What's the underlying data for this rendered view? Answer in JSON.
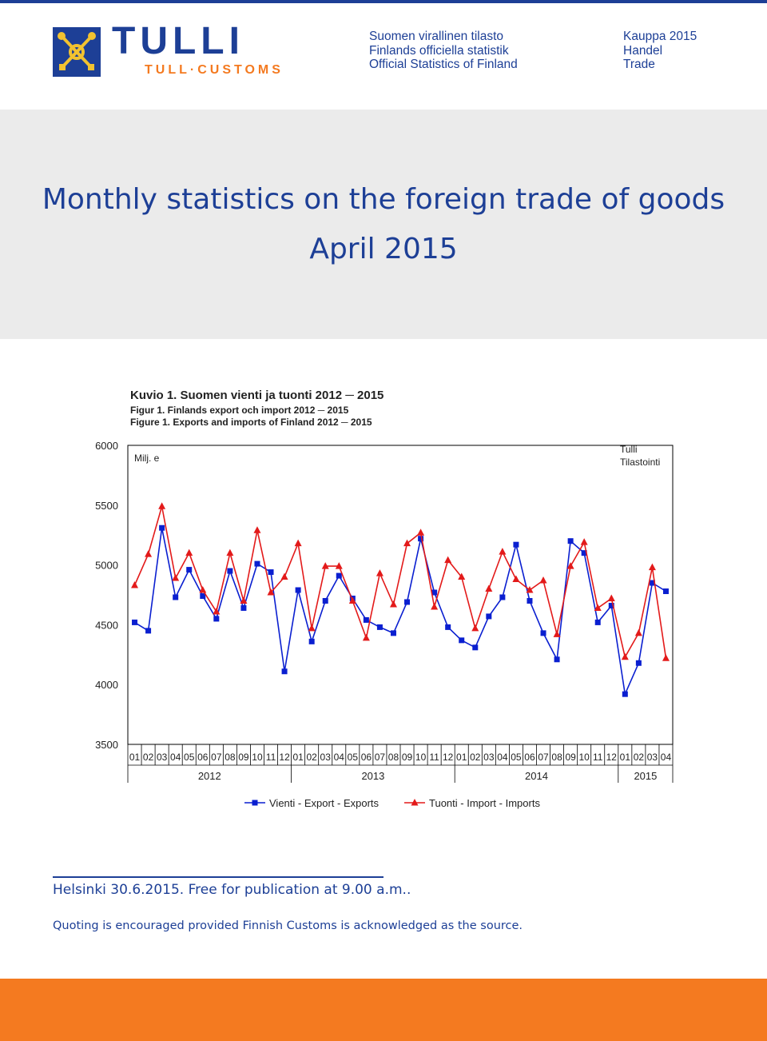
{
  "header": {
    "brand": "TULLI",
    "brand_sub": "TULL·CUSTOMS",
    "official_lines": [
      "Suomen virallinen tilasto",
      "Finlands officiella statistik",
      "Official Statistics of Finland"
    ],
    "series_lines": [
      "Kauppa 2015",
      "Handel",
      "Trade"
    ],
    "logo_icon": "crossed-keys-seal-icon",
    "brand_color": "#1d3f96",
    "accent_color": "#f47a20"
  },
  "title": {
    "line1": "Monthly statistics on the foreign trade of goods",
    "line2": "April 2015"
  },
  "figure_titles": {
    "fi": "Kuvio 1. Suomen vienti ja tuonti 2012 ─ 2015",
    "sv": "Figur 1. Finlands export och import 2012 ─ 2015",
    "en": "Figure 1. Exports and imports of Finland 2012 ─ 2015"
  },
  "chart_data": {
    "type": "line",
    "unit_label": "Milj. e",
    "source_label": [
      "Tulli",
      "Tilastointi"
    ],
    "ylim": [
      3500,
      6000
    ],
    "yticks": [
      3500,
      4000,
      4500,
      5000,
      5500,
      6000
    ],
    "grid": false,
    "legend_position": "bottom",
    "categories": [
      "01",
      "02",
      "03",
      "04",
      "05",
      "06",
      "07",
      "08",
      "09",
      "10",
      "11",
      "12",
      "01",
      "02",
      "03",
      "04",
      "05",
      "06",
      "07",
      "08",
      "09",
      "10",
      "11",
      "12",
      "01",
      "02",
      "03",
      "04",
      "05",
      "06",
      "07",
      "08",
      "09",
      "10",
      "11",
      "12",
      "01",
      "02",
      "03",
      "04"
    ],
    "years": [
      {
        "label": "2012",
        "months": 12
      },
      {
        "label": "2013",
        "months": 12
      },
      {
        "label": "2014",
        "months": 12
      },
      {
        "label": "2015",
        "months": 4
      }
    ],
    "series": [
      {
        "name": "Vienti - Export - Exports",
        "color": "#0a1fd0",
        "marker": "square",
        "values": [
          4520,
          4450,
          5310,
          4730,
          4960,
          4740,
          4550,
          4950,
          4640,
          5010,
          4940,
          4110,
          4790,
          4360,
          4700,
          4910,
          4720,
          4540,
          4480,
          4430,
          4690,
          5220,
          4770,
          4480,
          4370,
          4310,
          4570,
          4730,
          5170,
          4700,
          4430,
          4210,
          5200,
          5100,
          4520,
          4660,
          3920,
          4180,
          4850,
          4780
        ]
      },
      {
        "name": "Tuonti - Import - Imports",
        "color": "#e31a1a",
        "marker": "triangle",
        "values": [
          4830,
          5090,
          5490,
          4890,
          5100,
          4790,
          4610,
          5100,
          4700,
          5290,
          4770,
          4900,
          5180,
          4470,
          4990,
          4990,
          4700,
          4390,
          4930,
          4670,
          5180,
          5270,
          4650,
          5040,
          4900,
          4470,
          4800,
          5110,
          4880,
          4790,
          4870,
          4420,
          4990,
          5190,
          4640,
          4720,
          4230,
          4430,
          4980,
          4220
        ]
      }
    ]
  },
  "footer": {
    "release": "Helsinki 30.6.2015. Free for publication at 9.00 a.m..",
    "quoting": "Quoting is encouraged provided Finnish Customs is acknowledged as the source."
  }
}
